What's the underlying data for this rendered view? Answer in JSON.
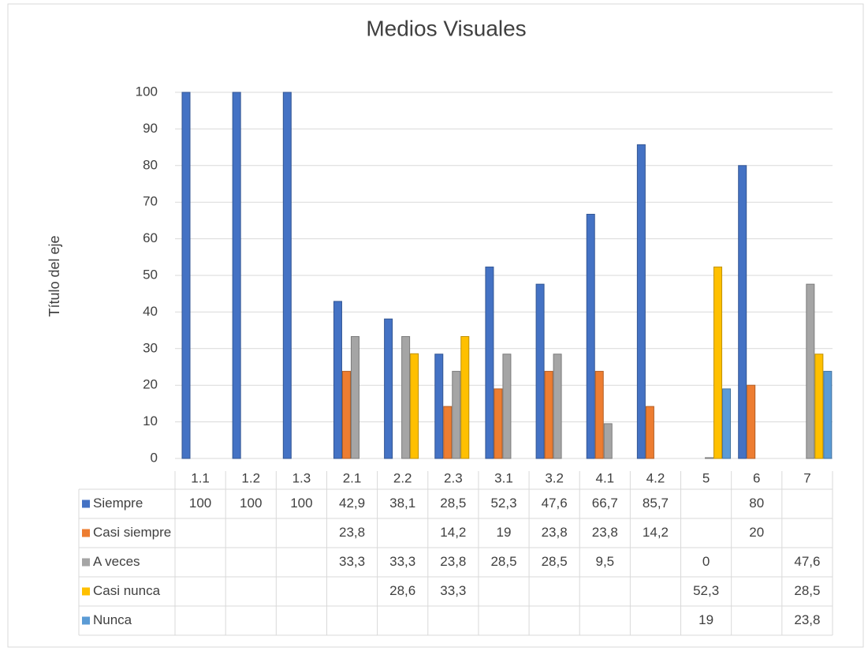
{
  "chart_data": {
    "type": "bar",
    "title": "Medios Visuales",
    "y_label": "Título del eje",
    "categories": [
      "1.1",
      "1.2",
      "1.3",
      "2.1",
      "2.2",
      "2.3",
      "3.1",
      "3.2",
      "4.1",
      "4.2",
      "5",
      "6",
      "7"
    ],
    "series": [
      {
        "name": "Siempre",
        "color": "#4472c4",
        "values": [
          100,
          100,
          100,
          42.9,
          38.1,
          28.5,
          52.3,
          47.6,
          66.7,
          85.7,
          null,
          80,
          null
        ],
        "value_labels": [
          "100",
          "100",
          "100",
          "42,9",
          "38,1",
          "28,5",
          "52,3",
          "47,6",
          "66,7",
          "85,7",
          null,
          "80",
          null
        ]
      },
      {
        "name": "Casi siempre",
        "color": "#ed7d31",
        "values": [
          null,
          null,
          null,
          23.8,
          null,
          14.2,
          19,
          23.8,
          23.8,
          14.2,
          null,
          20,
          null
        ],
        "value_labels": [
          null,
          null,
          null,
          "23,8",
          null,
          "14,2",
          "19",
          "23,8",
          "23,8",
          "14,2",
          null,
          "20",
          null
        ]
      },
      {
        "name": "A veces",
        "color": "#a5a5a5",
        "values": [
          null,
          null,
          null,
          33.3,
          33.3,
          23.8,
          28.5,
          28.5,
          9.5,
          null,
          0,
          null,
          47.6
        ],
        "value_labels": [
          null,
          null,
          null,
          "33,3",
          "33,3",
          "23,8",
          "28,5",
          "28,5",
          "9,5",
          null,
          "0",
          null,
          "47,6"
        ]
      },
      {
        "name": "Casi nunca",
        "color": "#ffc000",
        "values": [
          null,
          null,
          null,
          null,
          28.6,
          33.3,
          null,
          null,
          null,
          null,
          52.3,
          null,
          28.5
        ],
        "value_labels": [
          null,
          null,
          null,
          null,
          "28,6",
          "33,3",
          null,
          null,
          null,
          null,
          "52,3",
          null,
          "28,5"
        ]
      },
      {
        "name": "Nunca",
        "color": "#5b9bd5",
        "values": [
          null,
          null,
          null,
          null,
          null,
          null,
          null,
          null,
          null,
          null,
          19,
          null,
          23.8
        ],
        "value_labels": [
          null,
          null,
          null,
          null,
          null,
          null,
          null,
          null,
          null,
          null,
          "19",
          null,
          "23,8"
        ]
      }
    ],
    "ylim": [
      0,
      100
    ],
    "yticks": [
      0,
      10,
      20,
      30,
      40,
      50,
      60,
      70,
      80,
      90,
      100
    ],
    "grid": true,
    "legend": "table"
  }
}
